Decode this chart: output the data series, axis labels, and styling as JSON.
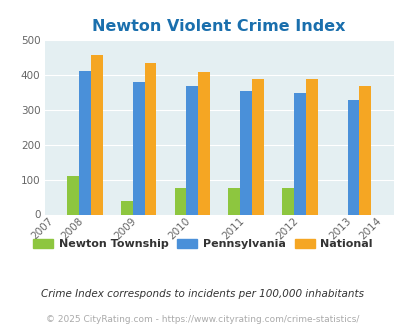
{
  "title": "Newton Violent Crime Index",
  "data_years": [
    2008,
    2009,
    2010,
    2011,
    2012,
    2013
  ],
  "newton": [
    110,
    40,
    75,
    75,
    75,
    0
  ],
  "pennsylvania": [
    410,
    380,
    366,
    352,
    348,
    328
  ],
  "national": [
    455,
    432,
    406,
    387,
    387,
    366
  ],
  "newton_color": "#8dc63f",
  "pennsylvania_color": "#4a90d9",
  "national_color": "#f5a623",
  "bg_color": "#e4eff2",
  "title_color": "#1a6fad",
  "ylim": [
    0,
    500
  ],
  "yticks": [
    0,
    100,
    200,
    300,
    400,
    500
  ],
  "legend_labels": [
    "Newton Township",
    "Pennsylvania",
    "National"
  ],
  "footnote1": "Crime Index corresponds to incidents per 100,000 inhabitants",
  "footnote2": "© 2025 CityRating.com - https://www.cityrating.com/crime-statistics/",
  "bar_width": 0.22
}
